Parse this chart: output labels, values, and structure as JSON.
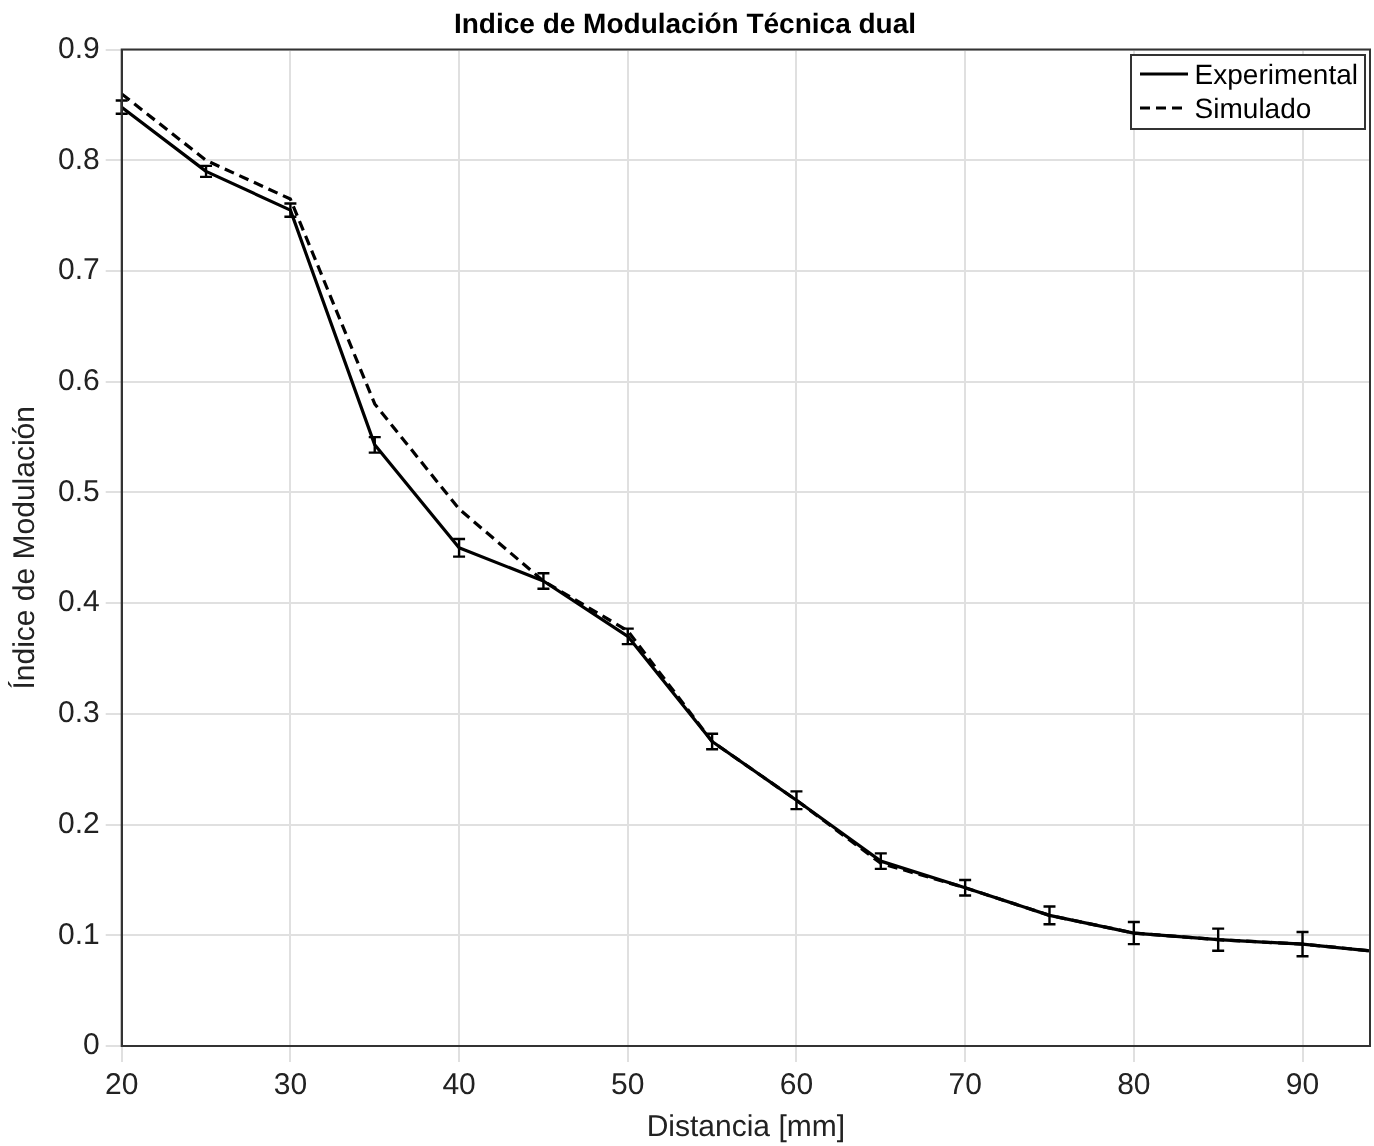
{
  "chart_data": {
    "type": "line",
    "title": "Indice de Modulación Técnica dual",
    "xlabel": "Distancia [mm]",
    "ylabel": "Índice de Modulación",
    "x": [
      20,
      25,
      30,
      35,
      40,
      45,
      50,
      55,
      60,
      65,
      70,
      75,
      80,
      85,
      90,
      94
    ],
    "series": [
      {
        "name": "Experimental",
        "color": "#000000",
        "line_style": "solid",
        "values": [
          0.848,
          0.79,
          0.755,
          0.543,
          0.45,
          0.42,
          0.37,
          0.275,
          0.222,
          0.167,
          0.143,
          0.118,
          0.102,
          0.096,
          0.092,
          0.086
        ],
        "errors": [
          0.006,
          0.005,
          0.006,
          0.007,
          0.008,
          0.007,
          0.007,
          0.007,
          0.008,
          0.007,
          0.007,
          0.008,
          0.01,
          0.01,
          0.011,
          null
        ]
      },
      {
        "name": "Simulado",
        "color": "#000000",
        "line_style": "dashed",
        "values": [
          0.86,
          0.8,
          0.765,
          0.58,
          0.485,
          0.42,
          0.375,
          0.275,
          0.222,
          0.165,
          0.143,
          0.118,
          0.102,
          0.096,
          0.092,
          0.086
        ]
      }
    ],
    "xlim": [
      20,
      94
    ],
    "xticks": [
      20,
      30,
      40,
      50,
      60,
      70,
      80,
      90
    ],
    "ylim": [
      0,
      0.9
    ],
    "yticks": [
      0,
      0.1,
      0.2,
      0.3,
      0.4,
      0.5,
      0.6,
      0.7,
      0.8,
      0.9
    ],
    "grid": true,
    "legend": "top right"
  }
}
